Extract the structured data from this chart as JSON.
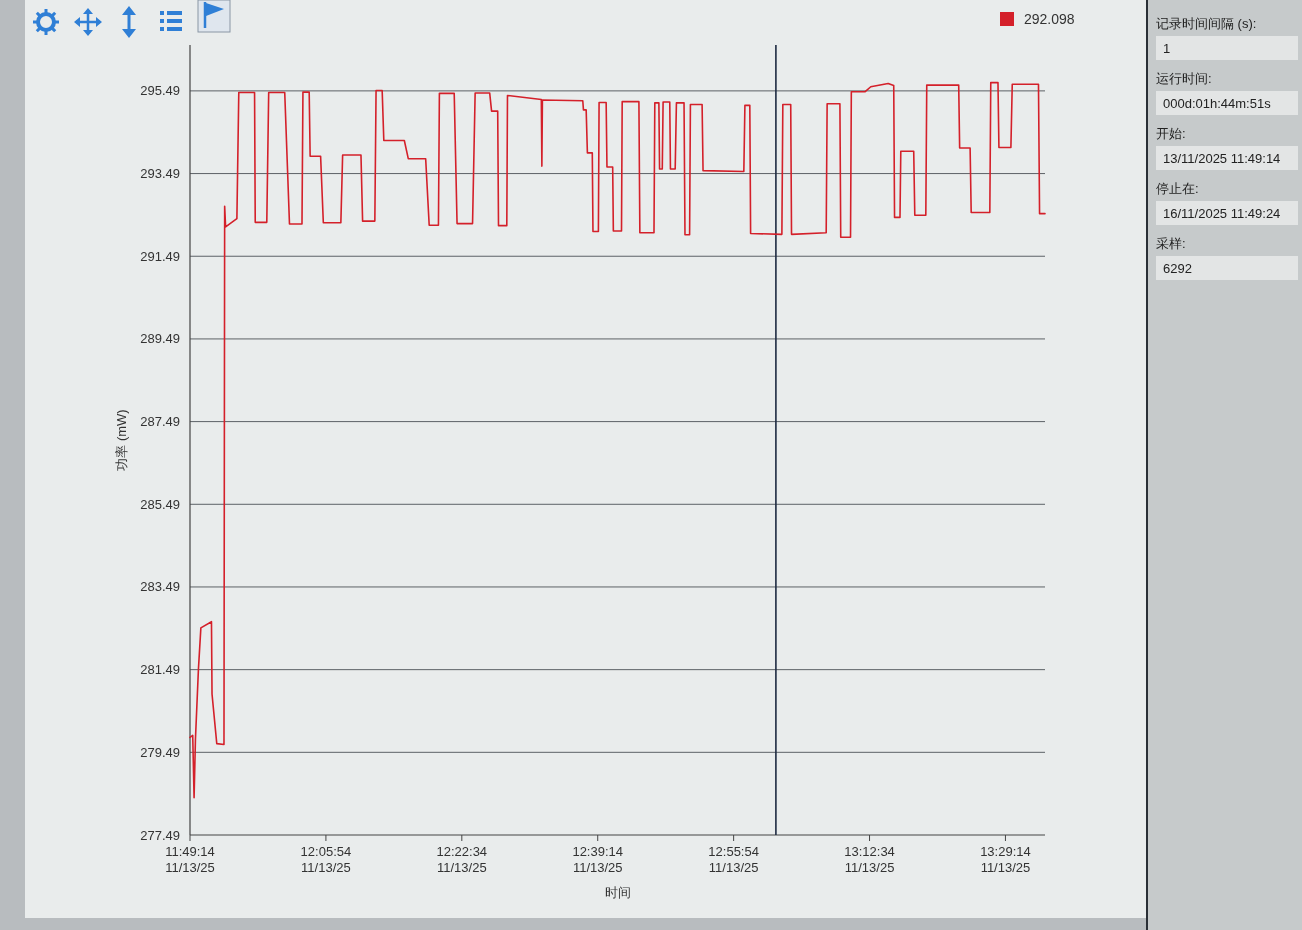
{
  "chart_data": {
    "type": "line",
    "xlabel": "时间",
    "ylabel": "功率 (mW)",
    "x": [
      "2025-11-13T11:49:14",
      "2025-11-13T11:49:34",
      "2025-11-13T11:49:44",
      "2025-11-13T11:49:54",
      "2025-11-13T11:50:16",
      "2025-11-13T11:50:34",
      "2025-11-13T11:51:52",
      "2025-11-13T11:51:56",
      "2025-11-13T11:52:31",
      "2025-11-13T11:53:24",
      "2025-11-13T11:53:29",
      "2025-11-13T11:53:36",
      "2025-11-13T11:54:59",
      "2025-11-13T11:55:13",
      "2025-11-13T11:57:09",
      "2025-11-13T11:57:14",
      "2025-11-13T11:58:39",
      "2025-11-13T11:58:53",
      "2025-11-13T12:00:51",
      "2025-11-13T12:01:26",
      "2025-11-13T12:02:58",
      "2025-11-13T12:03:05",
      "2025-11-13T12:03:51",
      "2025-11-13T12:03:58",
      "2025-11-13T12:05:15",
      "2025-11-13T12:05:35",
      "2025-11-13T12:07:44",
      "2025-11-13T12:07:57",
      "2025-11-13T12:10:12",
      "2025-11-13T12:10:24",
      "2025-11-13T12:11:54",
      "2025-11-13T12:12:03",
      "2025-11-13T12:12:48",
      "2025-11-13T12:13:00",
      "2025-11-13T12:15:31",
      "2025-11-13T12:16:00",
      "2025-11-13T12:18:08",
      "2025-11-13T12:18:34",
      "2025-11-13T12:19:42",
      "2025-11-13T12:19:49",
      "2025-11-13T12:21:38",
      "2025-11-13T12:21:59",
      "2025-11-13T12:23:53",
      "2025-11-13T12:24:12",
      "2025-11-13T12:25:59",
      "2025-11-13T12:26:13",
      "2025-11-13T12:26:58",
      "2025-11-13T12:27:04",
      "2025-11-13T12:28:05",
      "2025-11-13T12:28:10",
      "2025-11-13T12:32:19",
      "2025-11-13T12:32:23",
      "2025-11-13T12:32:27",
      "2025-11-13T12:37:24",
      "2025-11-13T12:37:29",
      "2025-11-13T12:37:49",
      "2025-11-13T12:37:58",
      "2025-11-13T12:38:34",
      "2025-11-13T12:38:39",
      "2025-11-13T12:39:19",
      "2025-11-13T12:39:24",
      "2025-11-13T12:40:16",
      "2025-11-13T12:40:22",
      "2025-11-13T12:41:04",
      "2025-11-13T12:41:09",
      "2025-11-13T12:42:09",
      "2025-11-13T12:42:14",
      "2025-11-13T12:44:17",
      "2025-11-13T12:44:24",
      "2025-11-13T12:46:08",
      "2025-11-13T12:46:14",
      "2025-11-13T12:46:44",
      "2025-11-13T12:46:49",
      "2025-11-13T12:47:09",
      "2025-11-13T12:47:15",
      "2025-11-13T12:48:04",
      "2025-11-13T12:48:09",
      "2025-11-13T12:48:44",
      "2025-11-13T12:48:53",
      "2025-11-13T12:49:49",
      "2025-11-13T12:49:56",
      "2025-11-13T12:50:30",
      "2025-11-13T12:50:36",
      "2025-11-13T12:52:02",
      "2025-11-13T12:52:09",
      "2025-11-13T12:57:09",
      "2025-11-13T12:57:17",
      "2025-11-13T12:57:53",
      "2025-11-13T12:57:59",
      "2025-11-13T13:01:49",
      "2025-11-13T13:01:56",
      "2025-11-13T13:02:54",
      "2025-11-13T13:03:00",
      "2025-11-13T13:07:15",
      "2025-11-13T13:07:22",
      "2025-11-13T13:08:56",
      "2025-11-13T13:09:02",
      "2025-11-13T13:10:14",
      "2025-11-13T13:10:20",
      "2025-11-13T13:12:02",
      "2025-11-13T13:12:43",
      "2025-11-13T13:14:51",
      "2025-11-13T13:15:32",
      "2025-11-13T13:15:38",
      "2025-11-13T13:16:18",
      "2025-11-13T13:16:24",
      "2025-11-13T13:17:59",
      "2025-11-13T13:18:07",
      "2025-11-13T13:19:28",
      "2025-11-13T13:19:35",
      "2025-11-13T13:23:30",
      "2025-11-13T13:23:37",
      "2025-11-13T13:24:54",
      "2025-11-13T13:25:02",
      "2025-11-13T13:27:19",
      "2025-11-13T13:27:26",
      "2025-11-13T13:28:19",
      "2025-11-13T13:28:26",
      "2025-11-13T13:29:54",
      "2025-11-13T13:30:04",
      "2025-11-13T13:33:17",
      "2025-11-13T13:33:25",
      "2025-11-13T13:34:05"
    ],
    "series": [
      {
        "name": "292.098",
        "color": "#d4202a",
        "values": [
          279.85,
          279.9,
          278.39,
          279.8,
          281.5,
          282.5,
          282.65,
          280.9,
          279.7,
          279.68,
          292.7,
          292.2,
          292.4,
          295.45,
          295.45,
          292.31,
          292.31,
          295.45,
          295.45,
          292.27,
          292.27,
          295.46,
          295.46,
          293.91,
          293.91,
          292.3,
          292.3,
          293.94,
          293.94,
          292.34,
          292.34,
          295.5,
          295.5,
          294.29,
          294.29,
          293.85,
          293.85,
          292.24,
          292.24,
          295.43,
          295.43,
          292.28,
          292.28,
          295.44,
          295.44,
          295.0,
          295.0,
          292.23,
          292.23,
          295.38,
          295.28,
          293.67,
          295.27,
          295.25,
          295.03,
          295.03,
          293.99,
          293.99,
          292.09,
          292.09,
          295.21,
          295.21,
          293.65,
          293.65,
          292.1,
          292.1,
          295.23,
          295.23,
          292.06,
          292.06,
          295.2,
          295.2,
          293.6,
          293.6,
          295.22,
          295.22,
          293.6,
          293.6,
          295.2,
          295.2,
          292.01,
          292.01,
          295.16,
          295.16,
          293.56,
          293.54,
          295.14,
          295.14,
          292.04,
          292.02,
          295.16,
          295.16,
          292.02,
          292.06,
          295.18,
          295.18,
          291.95,
          291.95,
          295.47,
          295.47,
          295.59,
          295.67,
          295.62,
          292.43,
          292.43,
          294.03,
          294.03,
          292.48,
          292.48,
          295.63,
          295.63,
          294.11,
          294.11,
          292.55,
          292.55,
          295.69,
          295.69,
          294.12,
          294.12,
          295.65,
          295.65,
          292.52,
          292.52
        ]
      }
    ],
    "xlim": [
      "2025-11-13T11:49:14",
      "2025-11-13T13:34:05"
    ],
    "ylim": [
      277.49,
      296.6
    ],
    "xticks": [
      {
        "value": "2025-11-13T11:49:14",
        "label": "11:49:14\n11/13/25"
      },
      {
        "value": "2025-11-13T12:05:54",
        "label": "12:05:54\n11/13/25"
      },
      {
        "value": "2025-11-13T12:22:34",
        "label": "12:22:34\n11/13/25"
      },
      {
        "value": "2025-11-13T12:39:14",
        "label": "12:39:14\n11/13/25"
      },
      {
        "value": "2025-11-13T12:55:54",
        "label": "12:55:54\n11/13/25"
      },
      {
        "value": "2025-11-13T13:12:34",
        "label": "13:12:34\n11/13/25"
      },
      {
        "value": "2025-11-13T13:29:14",
        "label": "13:29:14\n11/13/25"
      }
    ],
    "yticks": [
      277.49,
      279.49,
      281.49,
      283.49,
      285.49,
      287.49,
      289.49,
      291.49,
      293.49,
      295.49
    ],
    "grid": "y",
    "legend": "top right",
    "marker": "none",
    "line_style": "solid",
    "ref_lines": [
      {
        "axis": "x",
        "value": "2025-11-13T13:01:05",
        "color": "#1e2b42"
      }
    ],
    "annotations": [
      "记录时间间隔 (s):",
      "1",
      "运行时间:",
      "000d:01h:44m:51s",
      "开始:",
      "13/11/2025 11:49:14",
      "停止在:",
      "16/11/2025 11:49:24",
      "采样:",
      "6292"
    ]
  }
}
